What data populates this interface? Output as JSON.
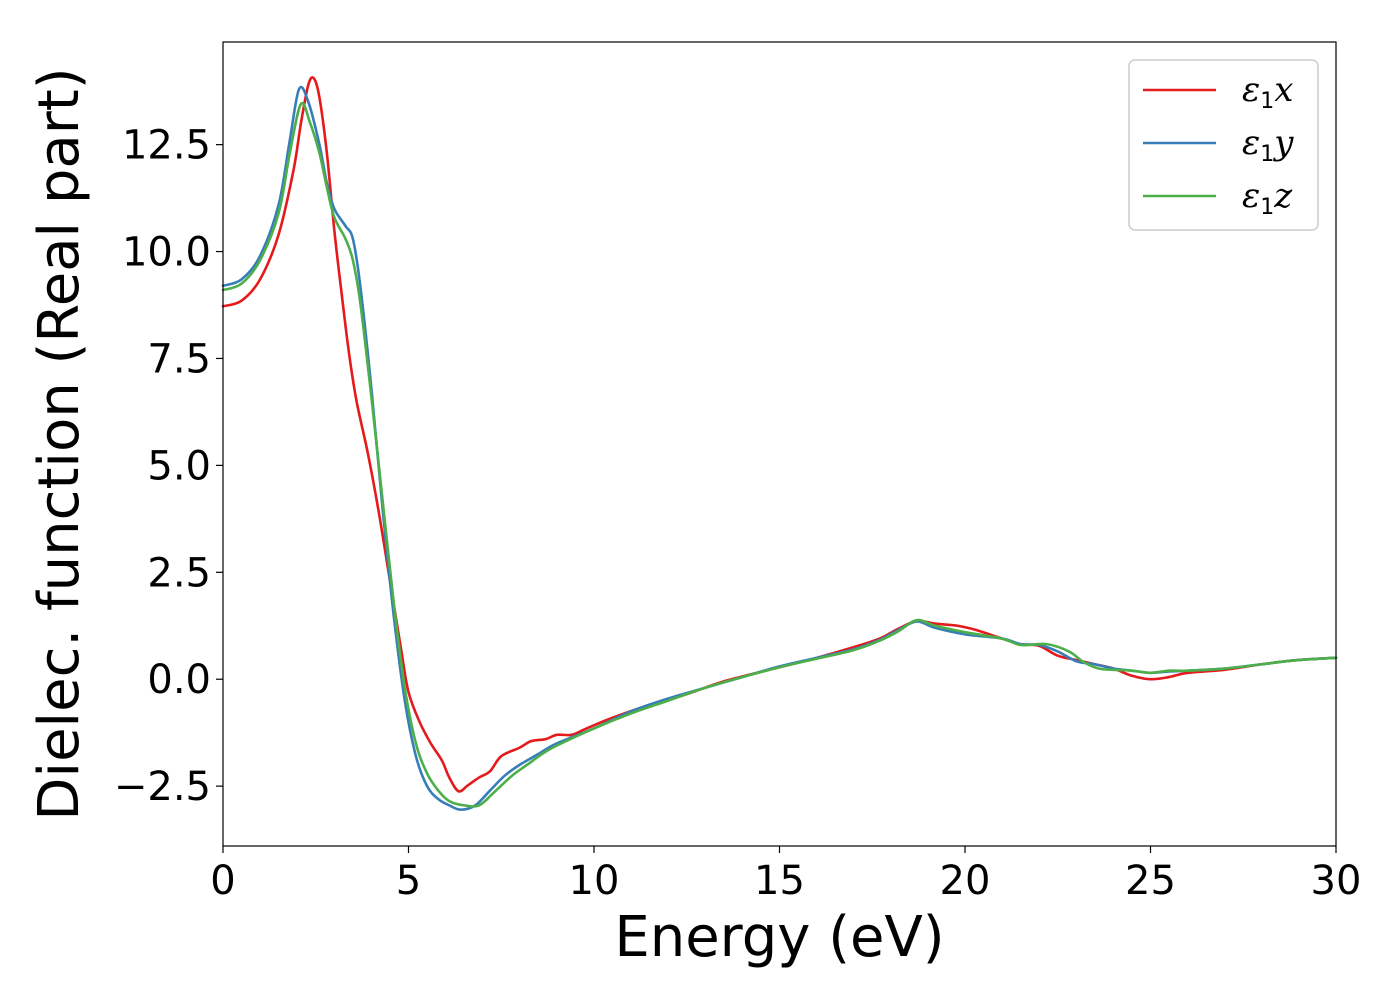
{
  "chart_data": {
    "type": "line",
    "xlabel": "Energy (eV)",
    "ylabel": "Dielec. function (Real part)",
    "xlim": [
      0,
      30
    ],
    "ylim": [
      -3.9,
      14.9
    ],
    "xticks": [
      0,
      5,
      10,
      15,
      20,
      25,
      30
    ],
    "yticks": [
      -2.5,
      0.0,
      2.5,
      5.0,
      7.5,
      10.0,
      12.5
    ],
    "xtick_labels": [
      "0",
      "5",
      "10",
      "15",
      "20",
      "25",
      "30"
    ],
    "ytick_labels": [
      "−2.5",
      "0.0",
      "2.5",
      "5.0",
      "7.5",
      "10.0",
      "12.5"
    ],
    "grid": false,
    "legend_position": "top-right",
    "series": [
      {
        "name": "ε₁x",
        "symbol": "ε",
        "subscript": "1",
        "component": "x",
        "color": "#e41a1c",
        "points": [
          [
            0,
            8.72
          ],
          [
            0.5,
            8.85
          ],
          [
            1.0,
            9.35
          ],
          [
            1.5,
            10.4
          ],
          [
            1.9,
            11.9
          ],
          [
            2.1,
            13.0
          ],
          [
            2.3,
            13.9
          ],
          [
            2.45,
            14.05
          ],
          [
            2.6,
            13.6
          ],
          [
            2.8,
            12.3
          ],
          [
            3.0,
            10.5
          ],
          [
            3.2,
            9.0
          ],
          [
            3.4,
            7.6
          ],
          [
            3.6,
            6.5
          ],
          [
            3.9,
            5.3
          ],
          [
            4.2,
            3.9
          ],
          [
            4.5,
            2.3
          ],
          [
            4.8,
            0.7
          ],
          [
            5.0,
            -0.3
          ],
          [
            5.3,
            -1.0
          ],
          [
            5.6,
            -1.5
          ],
          [
            5.9,
            -1.9
          ],
          [
            6.1,
            -2.3
          ],
          [
            6.35,
            -2.62
          ],
          [
            6.6,
            -2.48
          ],
          [
            6.9,
            -2.3
          ],
          [
            7.2,
            -2.15
          ],
          [
            7.5,
            -1.8
          ],
          [
            8.0,
            -1.6
          ],
          [
            8.3,
            -1.45
          ],
          [
            8.7,
            -1.4
          ],
          [
            9.0,
            -1.3
          ],
          [
            9.4,
            -1.3
          ],
          [
            9.8,
            -1.15
          ],
          [
            10.5,
            -0.9
          ],
          [
            11.5,
            -0.6
          ],
          [
            12.5,
            -0.35
          ],
          [
            13.5,
            -0.05
          ],
          [
            15,
            0.28
          ],
          [
            16,
            0.5
          ],
          [
            17,
            0.75
          ],
          [
            17.7,
            0.95
          ],
          [
            18.2,
            1.18
          ],
          [
            18.7,
            1.36
          ],
          [
            19.2,
            1.3
          ],
          [
            19.8,
            1.25
          ],
          [
            20.3,
            1.15
          ],
          [
            21,
            0.95
          ],
          [
            21.5,
            0.82
          ],
          [
            22,
            0.78
          ],
          [
            22.5,
            0.55
          ],
          [
            23,
            0.45
          ],
          [
            23.5,
            0.35
          ],
          [
            24,
            0.25
          ],
          [
            24.5,
            0.08
          ],
          [
            25,
            0.0
          ],
          [
            25.5,
            0.05
          ],
          [
            26,
            0.15
          ],
          [
            27,
            0.22
          ],
          [
            28,
            0.35
          ],
          [
            29,
            0.45
          ],
          [
            30,
            0.5
          ]
        ]
      },
      {
        "name": "ε₁y",
        "symbol": "ε",
        "subscript": "1",
        "component": "y",
        "color": "#377eb8",
        "points": [
          [
            0,
            9.2
          ],
          [
            0.5,
            9.35
          ],
          [
            1.0,
            9.9
          ],
          [
            1.5,
            11.1
          ],
          [
            1.8,
            12.6
          ],
          [
            2.05,
            13.8
          ],
          [
            2.3,
            13.5
          ],
          [
            2.6,
            12.5
          ],
          [
            2.8,
            11.6
          ],
          [
            3.0,
            11.0
          ],
          [
            3.3,
            10.6
          ],
          [
            3.5,
            10.3
          ],
          [
            3.7,
            9.2
          ],
          [
            4.0,
            6.8
          ],
          [
            4.3,
            4.0
          ],
          [
            4.6,
            1.5
          ],
          [
            4.9,
            -0.5
          ],
          [
            5.2,
            -1.8
          ],
          [
            5.5,
            -2.5
          ],
          [
            5.8,
            -2.8
          ],
          [
            6.1,
            -2.95
          ],
          [
            6.4,
            -3.05
          ],
          [
            6.8,
            -2.95
          ],
          [
            7.2,
            -2.6
          ],
          [
            7.6,
            -2.25
          ],
          [
            8.0,
            -2.0
          ],
          [
            8.5,
            -1.75
          ],
          [
            9.0,
            -1.5
          ],
          [
            10,
            -1.15
          ],
          [
            11,
            -0.75
          ],
          [
            12,
            -0.45
          ],
          [
            13,
            -0.2
          ],
          [
            14,
            0.05
          ],
          [
            15,
            0.3
          ],
          [
            16,
            0.5
          ],
          [
            17,
            0.7
          ],
          [
            17.7,
            0.92
          ],
          [
            18.2,
            1.15
          ],
          [
            18.7,
            1.35
          ],
          [
            19.2,
            1.2
          ],
          [
            20,
            1.05
          ],
          [
            21,
            0.95
          ],
          [
            21.5,
            0.82
          ],
          [
            22,
            0.8
          ],
          [
            22.5,
            0.65
          ],
          [
            23,
            0.42
          ],
          [
            23.5,
            0.35
          ],
          [
            24,
            0.25
          ],
          [
            24.5,
            0.2
          ],
          [
            25,
            0.15
          ],
          [
            25.5,
            0.18
          ],
          [
            26,
            0.2
          ],
          [
            27,
            0.25
          ],
          [
            28,
            0.35
          ],
          [
            29,
            0.45
          ],
          [
            30,
            0.5
          ]
        ]
      },
      {
        "name": "ε₁z",
        "symbol": "ε",
        "subscript": "1",
        "component": "z",
        "color": "#4daf4a",
        "points": [
          [
            0,
            9.1
          ],
          [
            0.5,
            9.25
          ],
          [
            1.0,
            9.8
          ],
          [
            1.5,
            10.9
          ],
          [
            1.8,
            12.3
          ],
          [
            2.1,
            13.45
          ],
          [
            2.35,
            13.0
          ],
          [
            2.6,
            12.3
          ],
          [
            2.8,
            11.5
          ],
          [
            3.0,
            10.8
          ],
          [
            3.3,
            10.3
          ],
          [
            3.5,
            9.8
          ],
          [
            3.7,
            8.8
          ],
          [
            4.0,
            6.6
          ],
          [
            4.3,
            4.2
          ],
          [
            4.6,
            1.8
          ],
          [
            4.9,
            -0.2
          ],
          [
            5.2,
            -1.5
          ],
          [
            5.5,
            -2.2
          ],
          [
            5.8,
            -2.6
          ],
          [
            6.1,
            -2.85
          ],
          [
            6.5,
            -2.95
          ],
          [
            6.9,
            -2.95
          ],
          [
            7.3,
            -2.65
          ],
          [
            7.8,
            -2.25
          ],
          [
            8.2,
            -2.0
          ],
          [
            8.6,
            -1.75
          ],
          [
            9.0,
            -1.55
          ],
          [
            10,
            -1.15
          ],
          [
            11,
            -0.8
          ],
          [
            12,
            -0.5
          ],
          [
            13,
            -0.2
          ],
          [
            14,
            0.05
          ],
          [
            15,
            0.28
          ],
          [
            16,
            0.48
          ],
          [
            17,
            0.68
          ],
          [
            17.7,
            0.9
          ],
          [
            18.2,
            1.12
          ],
          [
            18.7,
            1.38
          ],
          [
            19.2,
            1.25
          ],
          [
            20,
            1.1
          ],
          [
            21,
            0.95
          ],
          [
            21.5,
            0.8
          ],
          [
            22.2,
            0.82
          ],
          [
            22.8,
            0.65
          ],
          [
            23.2,
            0.4
          ],
          [
            23.6,
            0.25
          ],
          [
            24,
            0.22
          ],
          [
            24.5,
            0.2
          ],
          [
            25,
            0.15
          ],
          [
            25.5,
            0.2
          ],
          [
            26,
            0.2
          ],
          [
            27,
            0.25
          ],
          [
            28,
            0.35
          ],
          [
            29,
            0.45
          ],
          [
            30,
            0.5
          ]
        ]
      }
    ]
  }
}
